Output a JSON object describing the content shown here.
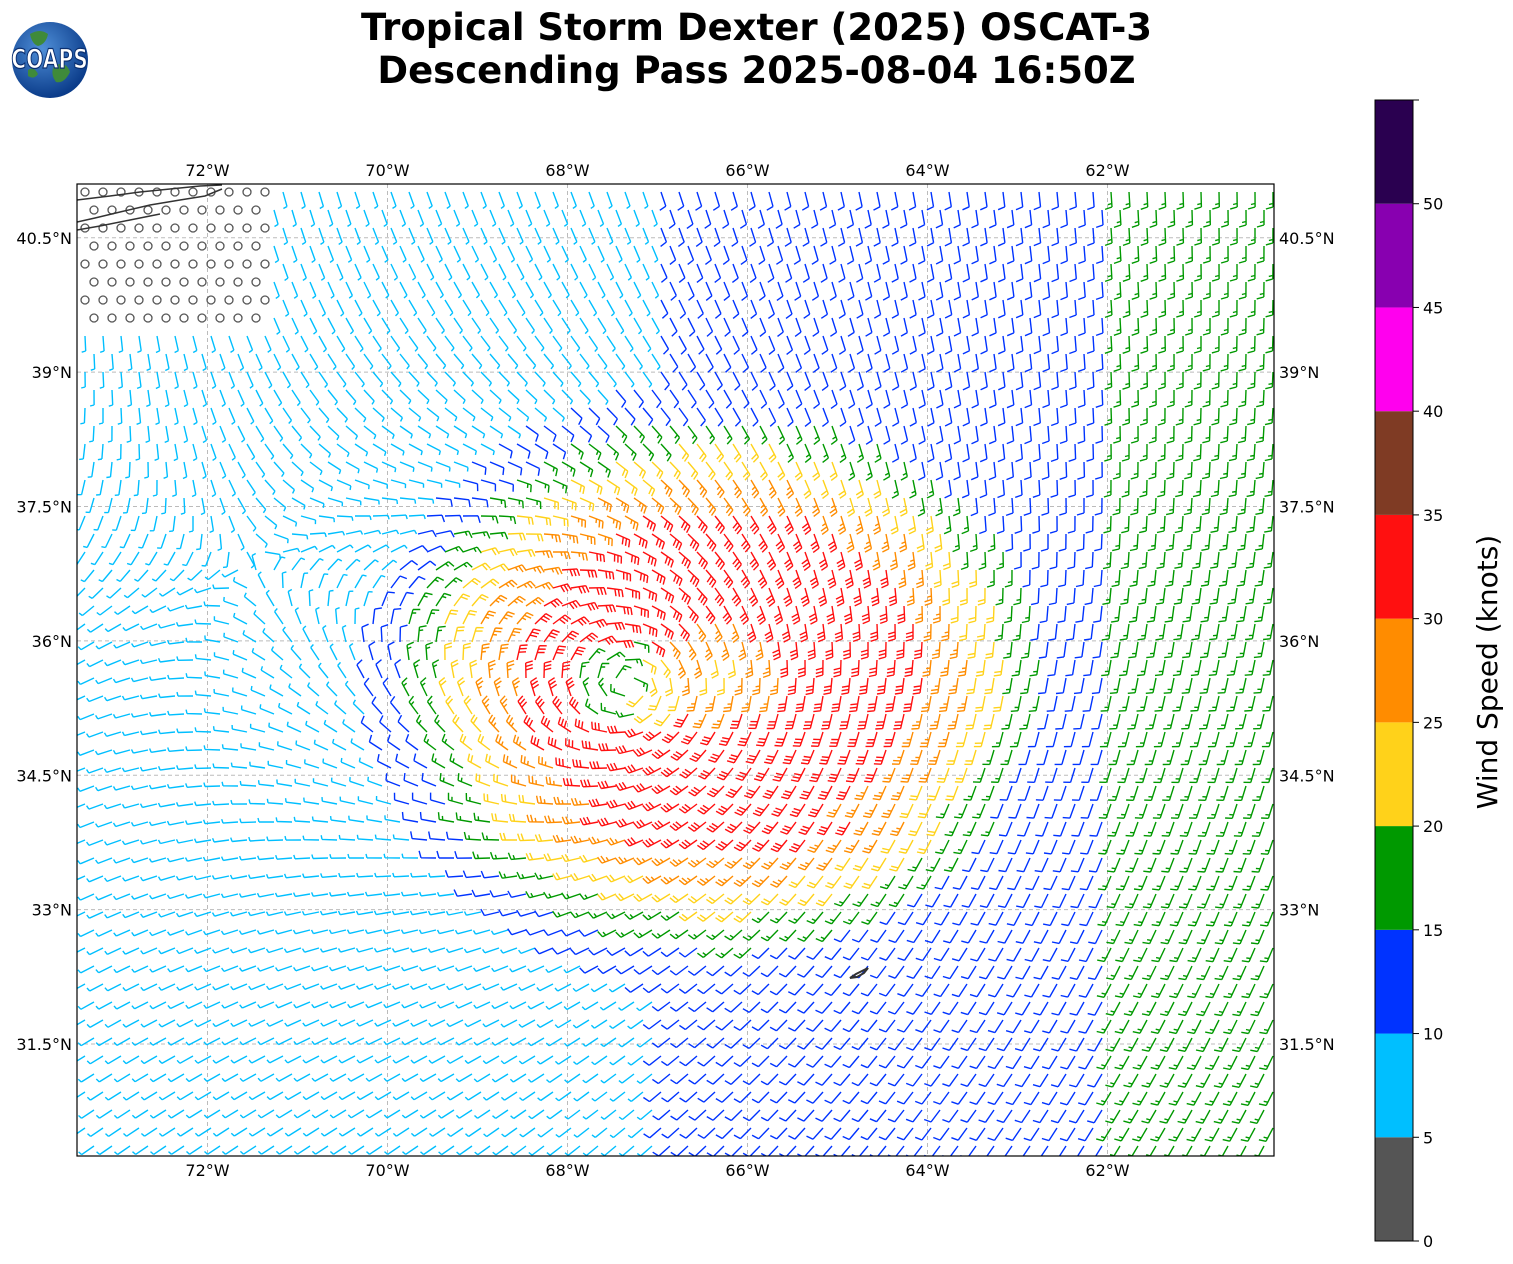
{
  "title_line1": "Tropical Storm Dexter (2025) OSCAT-3",
  "title_line2": "Descending Pass 2025-08-04 16:50Z",
  "logo_text": "COAPS",
  "logo_icon": "globe-icon",
  "map": {
    "lon_range": [
      -73.45,
      -60.15
    ],
    "lat_range": [
      30.25,
      41.1
    ],
    "lon_ticks": [
      -72,
      -70,
      -68,
      -66,
      -64,
      -62
    ],
    "lon_tick_labels": [
      "72°W",
      "70°W",
      "68°W",
      "66°W",
      "64°W",
      "62°W"
    ],
    "lat_ticks": [
      31.5,
      33,
      34.5,
      36,
      37.5,
      39,
      40.5
    ],
    "lat_tick_labels": [
      "31.5°N",
      "33°N",
      "34.5°N",
      "36°N",
      "37.5°N",
      "39°N",
      "40.5°N"
    ],
    "gridlines": true,
    "storm_center": {
      "lon": -67.3,
      "lat": 35.5
    },
    "wind_barbs": "cyclonic field, strongest (30-35 kt) southeast of center",
    "land": [
      "Long Island / New England coast (top-left)",
      "Bermuda (near 64.7°W, 32.3°N)"
    ]
  },
  "colorbar": {
    "label": "Wind Speed (knots)",
    "ticks": [
      "0",
      "5",
      "10",
      "15",
      "20",
      "25",
      "30",
      "35",
      "40",
      "45",
      "50"
    ],
    "bins": [
      {
        "min": 0,
        "max": 5,
        "color": "#555555"
      },
      {
        "min": 5,
        "max": 10,
        "color": "#00bfff"
      },
      {
        "min": 10,
        "max": 15,
        "color": "#0033ff"
      },
      {
        "min": 15,
        "max": 20,
        "color": "#009900"
      },
      {
        "min": 20,
        "max": 25,
        "color": "#ffd21a"
      },
      {
        "min": 25,
        "max": 30,
        "color": "#ff8c00"
      },
      {
        "min": 30,
        "max": 35,
        "color": "#ff1010"
      },
      {
        "min": 35,
        "max": 40,
        "color": "#7f3b24"
      },
      {
        "min": 40,
        "max": 45,
        "color": "#ff00ee"
      },
      {
        "min": 45,
        "max": 50,
        "color": "#8800b0"
      },
      {
        "min": 50,
        "max": 55,
        "color": "#2a0050"
      }
    ]
  }
}
